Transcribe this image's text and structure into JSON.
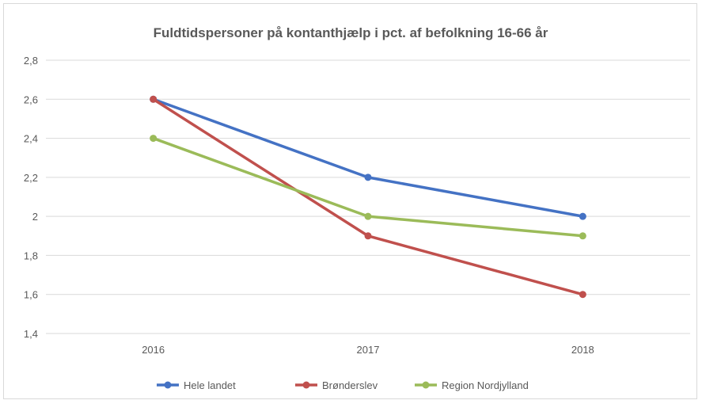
{
  "chart_data": {
    "type": "line",
    "title": "Fuldtidspersoner på kontanthjælp i pct. af befolkning 16-66 år",
    "xlabel": "",
    "ylabel": "",
    "categories": [
      "2016",
      "2017",
      "2018"
    ],
    "ylim": [
      1.4,
      2.8
    ],
    "yticks": [
      "1,4",
      "1,6",
      "1,8",
      "2",
      "2,2",
      "2,4",
      "2,6",
      "2,8"
    ],
    "ytick_values": [
      1.4,
      1.6,
      1.8,
      2.0,
      2.2,
      2.4,
      2.6,
      2.8
    ],
    "grid": "horizontal",
    "legend_position": "bottom",
    "series": [
      {
        "name": "Hele landet",
        "color": "#4472c4",
        "values": [
          2.6,
          2.2,
          2.0
        ]
      },
      {
        "name": "Brønderslev",
        "color": "#c0504d",
        "values": [
          2.6,
          1.9,
          1.6
        ]
      },
      {
        "name": "Region Nordjylland",
        "color": "#9bbb59",
        "values": [
          2.4,
          2.0,
          1.9
        ]
      }
    ]
  }
}
